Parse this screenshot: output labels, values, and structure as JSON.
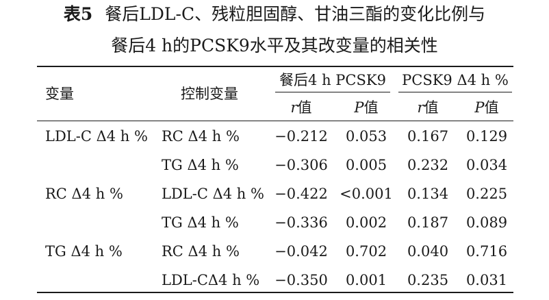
{
  "title": {
    "label": "表5",
    "line1": "餐后LDL-C、残粒胆固醇、甘油三酯的变化比例与",
    "line2": "餐后4 h的PCSK9水平及其改变量的相关性"
  },
  "header": {
    "col_var": "变量",
    "col_ctrl": "控制变量",
    "group1": "餐后4 h PCSK9",
    "group2": "PCSK9 Δ4 h %",
    "r_sym": "r",
    "p_sym": "P",
    "val_word": "值"
  },
  "rows": [
    {
      "var": "LDL-C Δ4 h %",
      "ctrl": "RC Δ4 h %",
      "r1": "−0.212",
      "p1": "0.053",
      "r2": "0.167",
      "p2": "0.129"
    },
    {
      "var": "",
      "ctrl": "TG Δ4 h %",
      "r1": "−0.306",
      "p1": "0.005",
      "r2": "0.232",
      "p2": "0.034"
    },
    {
      "var": "RC Δ4 h %",
      "ctrl": "LDL-C Δ4 h %",
      "r1": "−0.422",
      "p1": "<0.001",
      "r2": "0.134",
      "p2": "0.225"
    },
    {
      "var": "",
      "ctrl": "TG Δ4 h %",
      "r1": "−0.336",
      "p1": "0.002",
      "r2": "0.187",
      "p2": "0.089"
    },
    {
      "var": "TG Δ4 h %",
      "ctrl": "RC Δ4 h %",
      "r1": "−0.042",
      "p1": "0.702",
      "r2": "0.040",
      "p2": "0.716"
    },
    {
      "var": "",
      "ctrl": "LDL-CΔ4 h %",
      "r1": "−0.350",
      "p1": "0.001",
      "r2": "0.235",
      "p2": "0.031"
    }
  ]
}
